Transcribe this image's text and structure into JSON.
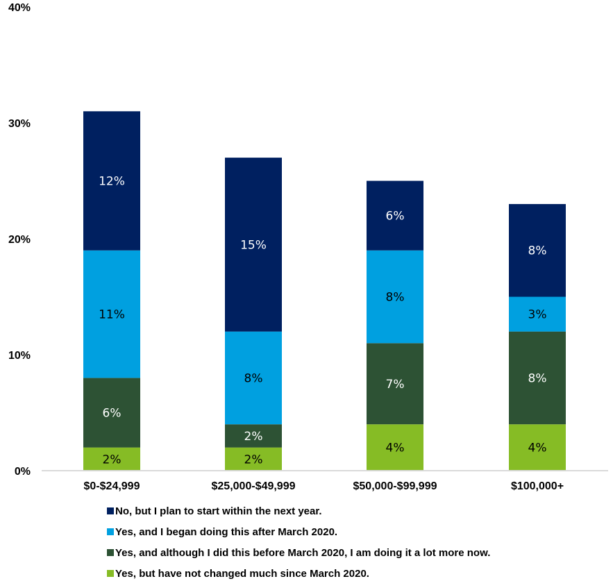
{
  "chart_data": {
    "type": "bar",
    "stacked": true,
    "categories": [
      "$0-$24,999",
      "$25,000-$49,999",
      "$50,000-$99,999",
      "$100,000+"
    ],
    "series": [
      {
        "name": "Yes, but have not changed much since March 2020.",
        "color": "#86bc25",
        "label_color": "#000000",
        "values": [
          2,
          2,
          4,
          4
        ]
      },
      {
        "name": "Yes, and although I did this before March 2020, I am doing it a lot more now.",
        "color": "#2d5234",
        "label_color": "#ffffff",
        "values": [
          6,
          2,
          7,
          8
        ]
      },
      {
        "name": "Yes, and I began doing this after March 2020.",
        "color": "#00a0e0",
        "label_color": "#000000",
        "values": [
          11,
          8,
          8,
          3
        ]
      },
      {
        "name": "No, but I plan to start within the next year.",
        "color": "#002060",
        "label_color": "#ffffff",
        "values": [
          12,
          15,
          6,
          8
        ]
      }
    ],
    "ylim": [
      0,
      40
    ],
    "yticks": [
      "0%",
      "10%",
      "20%",
      "30%",
      "40%"
    ],
    "ytick_values": [
      0,
      10,
      20,
      30,
      40
    ],
    "value_suffix": "%",
    "legend_position": "bottom",
    "legend_order": [
      3,
      2,
      1,
      0
    ],
    "grid": false
  }
}
